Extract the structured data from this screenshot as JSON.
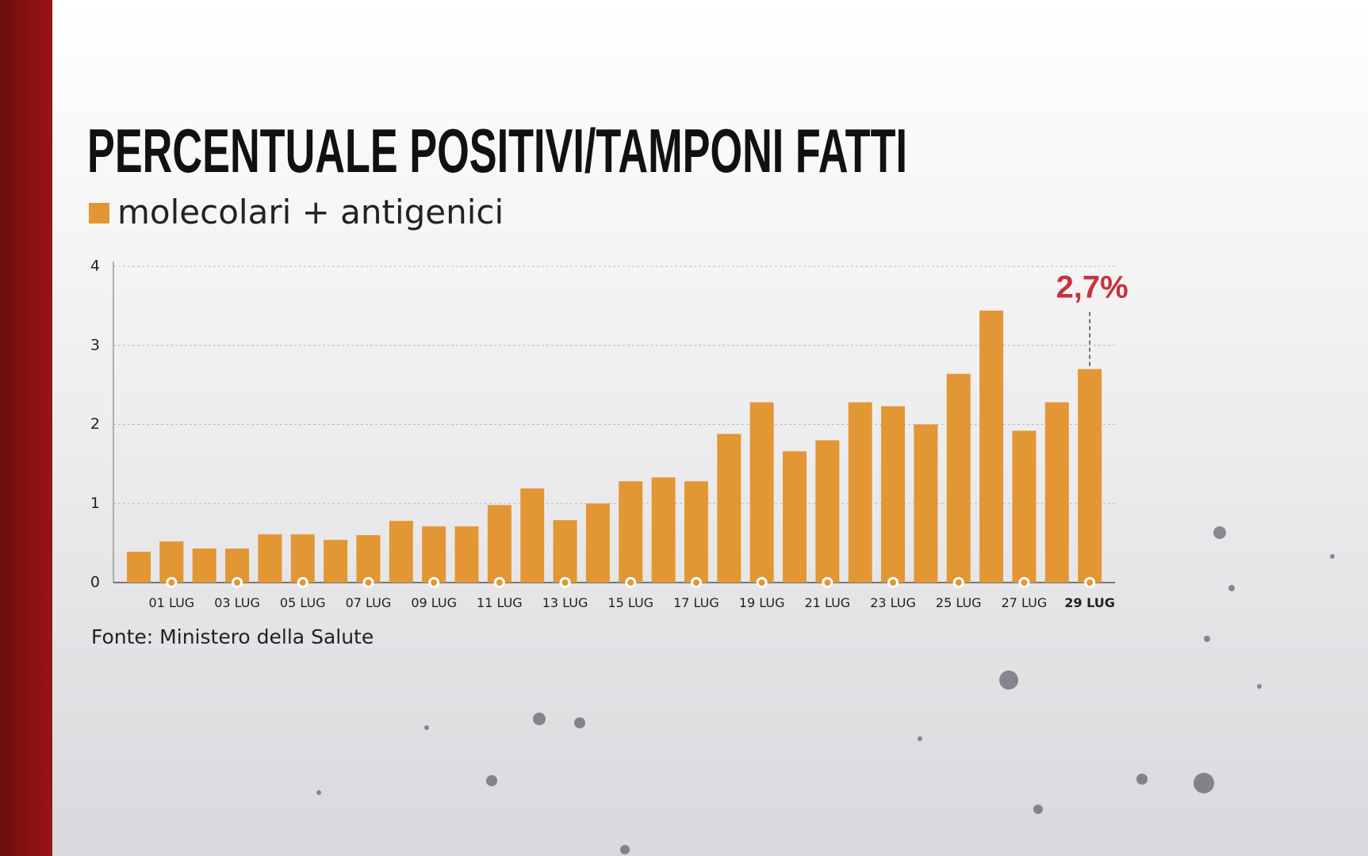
{
  "chart_data": {
    "type": "bar",
    "title": "PERCENTUALE POSITIVI/TAMPONI FATTI",
    "series": [
      {
        "name": "molecolari + antigenici",
        "color": "#e39634",
        "values": [
          0.39,
          0.52,
          0.43,
          0.43,
          0.61,
          0.61,
          0.54,
          0.6,
          0.78,
          0.71,
          0.71,
          0.98,
          1.19,
          0.79,
          1.0,
          1.28,
          1.33,
          1.28,
          1.88,
          2.28,
          1.66,
          1.8,
          2.28,
          2.23,
          2.0,
          2.64,
          3.44,
          1.92,
          2.28,
          2.7
        ],
        "value_labels": [
          null,
          null,
          null,
          null,
          null,
          null,
          null,
          null,
          null,
          null,
          null,
          null,
          null,
          null,
          null,
          null,
          null,
          null,
          null,
          null,
          null,
          null,
          null,
          null,
          null,
          null,
          null,
          null,
          null,
          "2,7%"
        ]
      }
    ],
    "categories": [
      null,
      "01 LUG",
      null,
      "03 LUG",
      null,
      "05 LUG",
      null,
      "07 LUG",
      null,
      "09 LUG",
      null,
      "11 LUG",
      null,
      "13 LUG",
      null,
      "15 LUG",
      null,
      "17 LUG",
      null,
      "19 LUG",
      null,
      "21 LUG",
      null,
      "23 LUG",
      null,
      "25 LUG",
      null,
      "27 LUG",
      null,
      "29 LUG"
    ],
    "ylim": [
      0,
      4
    ],
    "yticks": [
      0,
      1,
      2,
      3,
      4
    ],
    "grid": true,
    "source": "Fonte: Ministero della Salute"
  }
}
